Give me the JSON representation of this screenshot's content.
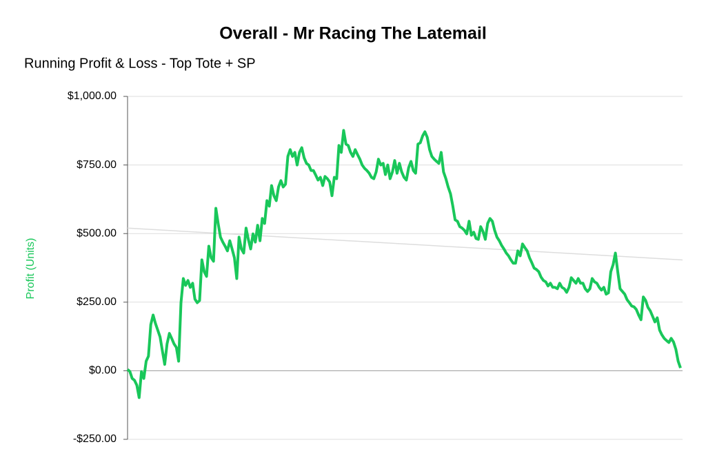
{
  "chart_data": {
    "type": "line",
    "title": "Overall - Mr Racing The Latemail",
    "subtitle": "Running Profit & Loss - Top Tote + SP",
    "y_label": "Profit (Units)",
    "color": "#19c75a",
    "ylim": [
      -250,
      1000
    ],
    "yticks": [
      {
        "value": -250,
        "label": "-$250.00"
      },
      {
        "value": 0,
        "label": "$0.00"
      },
      {
        "value": 250,
        "label": "$250.00"
      },
      {
        "value": 500,
        "label": "$500.00"
      },
      {
        "value": 750,
        "label": "$750.00"
      },
      {
        "value": 1000,
        "label": "$1,000.00"
      }
    ],
    "grid": true,
    "trend": [
      520,
      404
    ],
    "values": [
      5,
      -3,
      -28,
      -35,
      -53,
      -98,
      -3,
      -28,
      35,
      53,
      168,
      203,
      173,
      148,
      123,
      73,
      23,
      98,
      136,
      118,
      98,
      85,
      35,
      248,
      336,
      311,
      329,
      304,
      319,
      261,
      248,
      256,
      404,
      361,
      344,
      454,
      412,
      399,
      592,
      537,
      487,
      469,
      454,
      437,
      474,
      444,
      412,
      336,
      487,
      444,
      429,
      520,
      479,
      444,
      499,
      469,
      530,
      474,
      555,
      537,
      620,
      600,
      675,
      638,
      620,
      670,
      693,
      670,
      680,
      781,
      806,
      781,
      796,
      750,
      796,
      813,
      776,
      756,
      750,
      730,
      730,
      713,
      695,
      705,
      675,
      708,
      700,
      688,
      638,
      705,
      700,
      821,
      796,
      876,
      826,
      821,
      796,
      781,
      806,
      788,
      771,
      750,
      738,
      730,
      720,
      705,
      700,
      725,
      771,
      750,
      756,
      715,
      750,
      700,
      725,
      766,
      720,
      756,
      725,
      705,
      695,
      740,
      763,
      730,
      720,
      826,
      831,
      856,
      871,
      851,
      806,
      781,
      771,
      763,
      756,
      796,
      725,
      700,
      670,
      645,
      600,
      550,
      545,
      525,
      520,
      512,
      499,
      545,
      494,
      505,
      482,
      479,
      525,
      507,
      479,
      537,
      555,
      545,
      512,
      487,
      474,
      457,
      444,
      429,
      419,
      404,
      392,
      392,
      437,
      419,
      462,
      449,
      437,
      412,
      394,
      374,
      369,
      361,
      341,
      329,
      324,
      309,
      319,
      304,
      304,
      299,
      319,
      304,
      299,
      286,
      304,
      339,
      329,
      319,
      336,
      319,
      319,
      299,
      289,
      299,
      336,
      324,
      319,
      304,
      294,
      304,
      279,
      284,
      361,
      387,
      429,
      361,
      299,
      289,
      279,
      259,
      248,
      236,
      233,
      223,
      203,
      186,
      269,
      256,
      231,
      218,
      198,
      178,
      193,
      148,
      131,
      118,
      110,
      103,
      118,
      105,
      78,
      35,
      10
    ]
  }
}
